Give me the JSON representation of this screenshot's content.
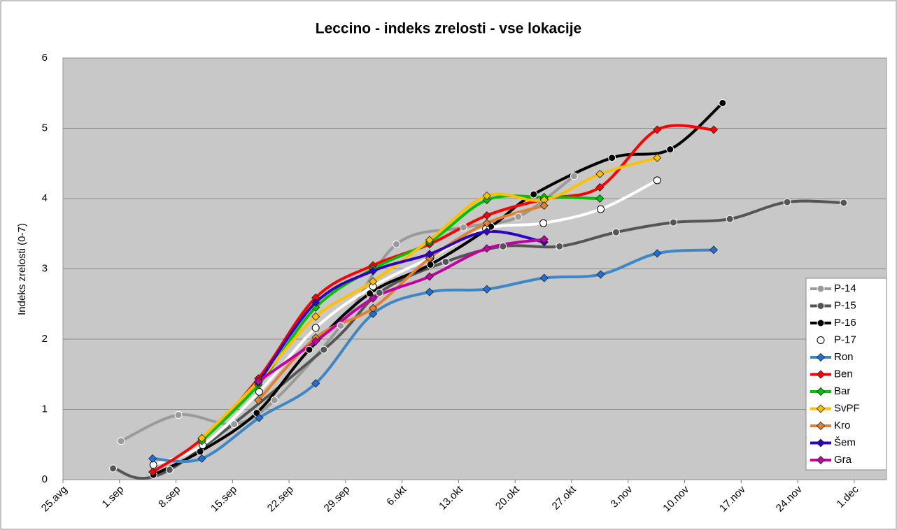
{
  "chart_data": {
    "type": "line",
    "title": "Leccino - indeks zrelosti - vse lokacije",
    "y_label": "Indeks zrelosti (0-7)",
    "xlim": [
      0,
      102
    ],
    "xticks": [
      {
        "value": 0,
        "label": "25.avg"
      },
      {
        "value": 7,
        "label": "1.sep"
      },
      {
        "value": 14,
        "label": "8.sep"
      },
      {
        "value": 21,
        "label": "15.sep"
      },
      {
        "value": 28,
        "label": "22.sep"
      },
      {
        "value": 35,
        "label": "29.sep"
      },
      {
        "value": 42,
        "label": "6.okt"
      },
      {
        "value": 49,
        "label": "13.okt"
      },
      {
        "value": 56,
        "label": "20.okt"
      },
      {
        "value": 63,
        "label": "27.okt"
      },
      {
        "value": 70,
        "label": "3.nov"
      },
      {
        "value": 77,
        "label": "10.nov"
      },
      {
        "value": 84,
        "label": "17.nov"
      },
      {
        "value": 91,
        "label": "24.nov"
      },
      {
        "value": 98,
        "label": "1.dec"
      }
    ],
    "ylim": [
      0,
      6
    ],
    "yticks": [
      0,
      1,
      2,
      3,
      4,
      5,
      6
    ],
    "grid": true,
    "legend": "right",
    "series": [
      {
        "name": "P-14",
        "color": "#9a9a9a",
        "marker": "circle",
        "marker_fill": "#9a9a9a",
        "x": [
          7.2,
          14.3,
          21.2,
          26.2,
          34.4,
          41.3,
          49.6,
          56.4,
          63.3
        ],
        "values": [
          0.55,
          0.92,
          0.79,
          1.13,
          2.19,
          3.35,
          3.59,
          3.74,
          4.32
        ]
      },
      {
        "name": "P-15",
        "color": "#555555",
        "marker": "circle",
        "marker_fill": "#555555",
        "x": [
          6.2,
          13.2,
          32.3,
          39.2,
          47.4,
          54.5,
          61.5,
          68.5,
          75.6,
          82.6,
          89.7,
          96.7
        ],
        "values": [
          0.16,
          0.14,
          1.85,
          2.66,
          3.1,
          3.32,
          3.32,
          3.52,
          3.66,
          3.71,
          3.95,
          3.94
        ]
      },
      {
        "name": "P-16",
        "color": "#000000",
        "marker": "circle",
        "marker_fill": "#000000",
        "x": [
          11.2,
          17,
          24,
          30.5,
          38,
          45.5,
          53,
          58.3,
          68,
          75.2,
          81.7
        ],
        "values": [
          0.07,
          0.4,
          0.95,
          1.85,
          2.65,
          3.06,
          3.6,
          4.06,
          4.58,
          4.7,
          5.36
        ]
      },
      {
        "name": "P-17",
        "color": "#ffffff",
        "marker": "circle",
        "marker_fill": "#ffffff",
        "x": [
          11.2,
          17.3,
          24.3,
          31.3,
          38.4,
          45.5,
          52.4,
          59.5,
          66.6,
          73.6
        ],
        "values": [
          0.21,
          0.49,
          1.25,
          2.16,
          2.75,
          3.16,
          3.57,
          3.65,
          3.85,
          4.26
        ]
      },
      {
        "name": "Ron",
        "color": "#3f86c4",
        "marker": "diamond",
        "marker_fill": "#1e6fd9",
        "x": [
          11.1,
          17.2,
          24.3,
          31.3,
          38.4,
          45.4,
          52.5,
          59.6,
          66.6,
          73.6,
          80.6
        ],
        "values": [
          0.3,
          0.3,
          0.88,
          1.37,
          2.36,
          2.67,
          2.71,
          2.87,
          2.92,
          3.22,
          3.27
        ]
      },
      {
        "name": "Ben",
        "color": "#ff0000",
        "marker": "diamond",
        "marker_fill": "#ff0000",
        "x": [
          11.1,
          17.2,
          24.2,
          31.3,
          38.4,
          45.4,
          52.5,
          59.6,
          66.5,
          73.6,
          80.6
        ],
        "values": [
          0.11,
          0.58,
          1.44,
          2.59,
          3.05,
          3.35,
          3.76,
          3.99,
          4.16,
          4.98,
          4.98
        ]
      },
      {
        "name": "Bar",
        "color": "#00c000",
        "marker": "diamond",
        "marker_fill": "#00c000",
        "x": [
          17.2,
          24.2,
          31.3,
          38.4,
          45.4,
          52.5,
          59.6,
          66.5
        ],
        "values": [
          0.55,
          1.35,
          2.45,
          3.0,
          3.38,
          3.98,
          4.02,
          4.0
        ]
      },
      {
        "name": "SvPF",
        "color": "#ffc000",
        "marker": "diamond",
        "marker_fill": "#ffc000",
        "x": [
          17.2,
          24.2,
          31.3,
          38.4,
          45.4,
          52.5,
          59.6,
          66.5,
          73.6
        ],
        "values": [
          0.59,
          1.4,
          2.32,
          2.82,
          3.41,
          4.04,
          3.98,
          4.35,
          4.58
        ]
      },
      {
        "name": "Kro",
        "color": "#e08030",
        "marker": "diamond",
        "marker_fill": "#e08030",
        "x": [
          24.2,
          31.3,
          38.4,
          45.4,
          52.5,
          59.6
        ],
        "values": [
          1.13,
          2.02,
          2.44,
          3.15,
          3.65,
          3.9
        ]
      },
      {
        "name": "Šem",
        "color": "#3000c0",
        "marker": "diamond",
        "marker_fill": "#3000c0",
        "x": [
          24.2,
          31.3,
          38.4,
          45.4,
          52.5,
          59.6
        ],
        "values": [
          1.38,
          2.52,
          2.97,
          3.21,
          3.53,
          3.38
        ]
      },
      {
        "name": "Gra",
        "color": "#c000a0",
        "marker": "diamond",
        "marker_fill": "#c000a0",
        "x": [
          24.2,
          31.3,
          38.4,
          45.4,
          52.5,
          59.6
        ],
        "values": [
          1.4,
          1.97,
          2.58,
          2.89,
          3.29,
          3.42
        ]
      }
    ]
  }
}
